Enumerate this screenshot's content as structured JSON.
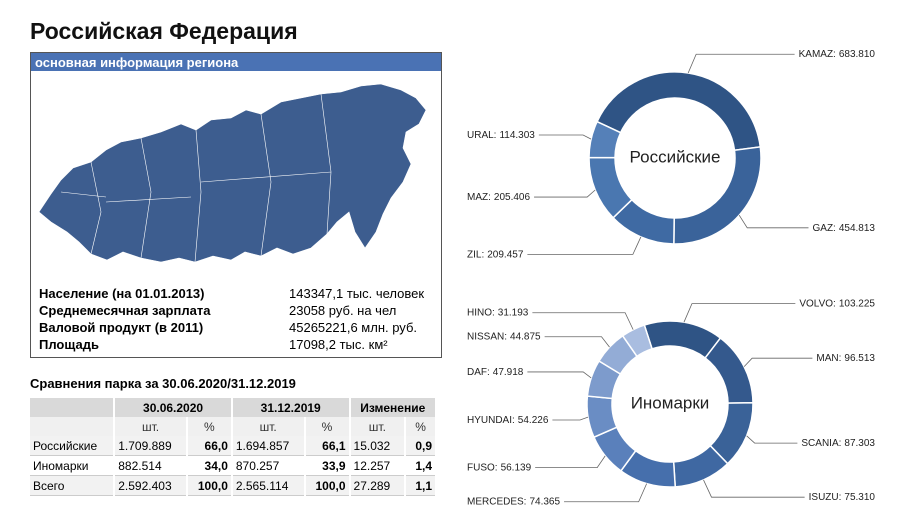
{
  "header": {
    "title": "Российская Федерация"
  },
  "region_panel": {
    "title": "основная информация региона",
    "stats": [
      {
        "label": "Население (на 01.01.2013)",
        "value": "143347,1 тыс. человек"
      },
      {
        "label": "Среднемесячная зарплата",
        "value": "23058 руб. на чел"
      },
      {
        "label": "Валовой продукт (в 2011)",
        "value": "45265221,6 млн. руб."
      },
      {
        "label": "Площадь",
        "value": "17098,2 тыс. км²"
      }
    ]
  },
  "comparison": {
    "title": "Сравнения парка за 30.06.2020/31.12.2019",
    "groups": [
      "30.06.2020",
      "31.12.2019",
      "Изменение"
    ],
    "subheaders": [
      "шт.",
      "%",
      "шт.",
      "%",
      "шт.",
      "%"
    ],
    "rows": [
      [
        "Российские",
        "1.709.889",
        "66,0",
        "1.694.857",
        "66,1",
        "15.032",
        "0,9"
      ],
      [
        "Иномарки",
        "882.514",
        "34,0",
        "870.257",
        "33,9",
        "12.257",
        "1,4"
      ],
      [
        "Всего",
        "2.592.403",
        "100,0",
        "2.565.114",
        "100,0",
        "27.289",
        "1,1"
      ]
    ]
  },
  "chart_data": [
    {
      "type": "donut",
      "title": "Российские",
      "categories": [
        "KAMAZ:",
        "GAZ:",
        "ZIL:",
        "MAZ:",
        "URAL:"
      ],
      "values": [
        683810,
        454813,
        209457,
        205406,
        114303
      ],
      "value_labels": [
        "683.810",
        "454.813",
        "209.457",
        "205.406",
        "114.303"
      ],
      "colors": [
        "#2f5485",
        "#3a639a",
        "#3f6aa3",
        "#4a77b0",
        "#5580b8"
      ]
    },
    {
      "type": "donut",
      "title": "Иномарки",
      "categories": [
        "VOLVO:",
        "MAN:",
        "SCANIA:",
        "ISUZU:",
        "MERCEDES:",
        "FUSO:",
        "HYUNDAI:",
        "DAF:",
        "NISSAN:",
        "HINO:"
      ],
      "values": [
        103225,
        96513,
        87303,
        75310,
        74365,
        56139,
        54226,
        47918,
        44875,
        31193
      ],
      "value_labels": [
        "103.225",
        "96.513",
        "87.303",
        "75.310",
        "74.365",
        "56.139",
        "54.226",
        "47.918",
        "44.875",
        "31.193"
      ],
      "colors": [
        "#2f5485",
        "#34598d",
        "#3a6298",
        "#3f68a2",
        "#466fac",
        "#5a80bb",
        "#6a8dc4",
        "#7d9bcc",
        "#93acd6",
        "#a9bde0"
      ]
    }
  ]
}
